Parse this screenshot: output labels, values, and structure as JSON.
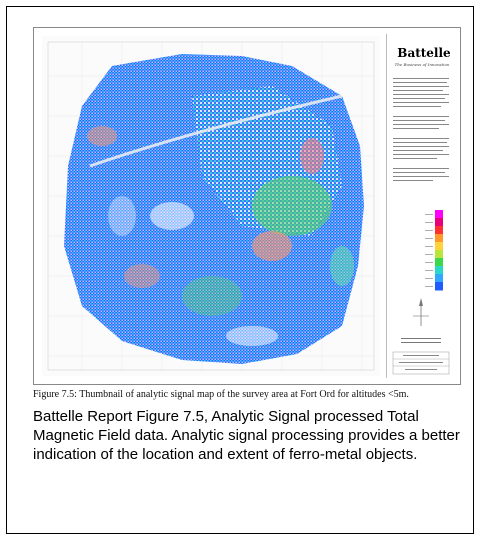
{
  "figure": {
    "brand": "Battelle",
    "tagline": "The Business of Innovation",
    "colors": {
      "scale": [
        "#ff00ff",
        "#e8007a",
        "#ff3030",
        "#ff9a2a",
        "#ffd23a",
        "#b8e63a",
        "#3ad84a",
        "#2ad8c8",
        "#30a8ff",
        "#1f5cff"
      ],
      "map_primary": "#2a5cff",
      "map_secondary": "#35c8ff",
      "map_accent": "#52d862"
    }
  },
  "caption": "Figure 7.5:  Thumbnail of analytic signal map of the survey area at Fort Ord for altitudes <5m.",
  "description": "Battelle Report Figure 7.5, Analytic Signal processed Total Magnetic Field data. Analytic signal processing provides a better indication of the location and extent of ferro-metal objects."
}
